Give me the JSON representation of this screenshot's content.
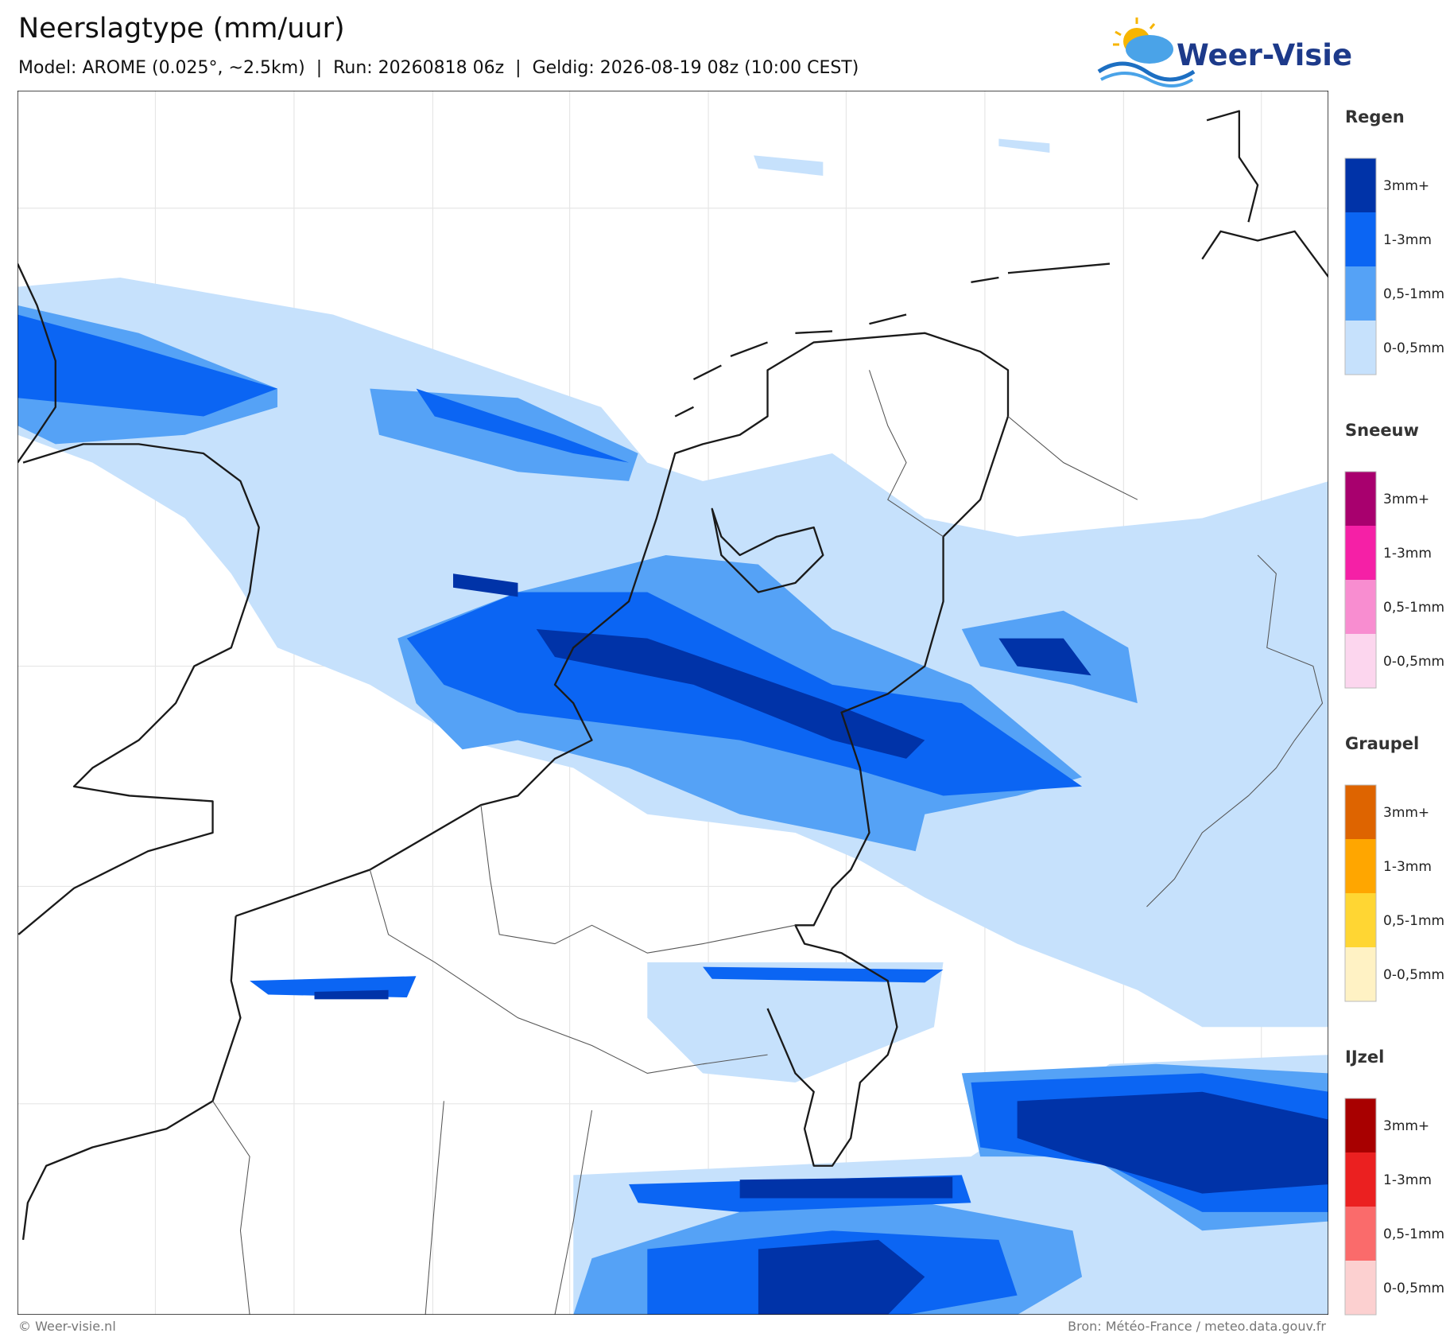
{
  "header": {
    "title": "Neerslagtype (mm/uur)",
    "subtitle": "Model: AROME (0.025°, ~2.5km)  |  Run: 20260818 06z  |  Geldig: 2026-08-19 08z (10:00 CEST)",
    "logo": "Weer-Visie"
  },
  "legend": [
    {
      "name": "Regen",
      "items": [
        {
          "label": "3mm+",
          "color": "#0033a8"
        },
        {
          "label": "1-3mm",
          "color": "#0b65f3"
        },
        {
          "label": "0,5-1mm",
          "color": "#55a2f6"
        },
        {
          "label": "0-0,5mm",
          "color": "#c6e1fc"
        }
      ]
    },
    {
      "name": "Sneeuw",
      "items": [
        {
          "label": "3mm+",
          "color": "#a8006e"
        },
        {
          "label": "1-3mm",
          "color": "#f520a6"
        },
        {
          "label": "0,5-1mm",
          "color": "#f88dd0"
        },
        {
          "label": "0-0,5mm",
          "color": "#fcd6ee"
        }
      ]
    },
    {
      "name": "Graupel",
      "items": [
        {
          "label": "3mm+",
          "color": "#de6400"
        },
        {
          "label": "1-3mm",
          "color": "#ffa600"
        },
        {
          "label": "0,5-1mm",
          "color": "#ffd633"
        },
        {
          "label": "0-0,5mm",
          "color": "#fff2c4"
        }
      ]
    },
    {
      "name": "IJzel",
      "items": [
        {
          "label": "3mm+",
          "color": "#a80000"
        },
        {
          "label": "1-3mm",
          "color": "#eb2020"
        },
        {
          "label": "0,5-1mm",
          "color": "#fa6b6b"
        },
        {
          "label": "0-0,5mm",
          "color": "#fcd0d0"
        }
      ]
    }
  ],
  "footer": {
    "left": "© Weer-visie.nl",
    "right": "Bron: Météo-France / meteo.data.gouv.fr"
  }
}
